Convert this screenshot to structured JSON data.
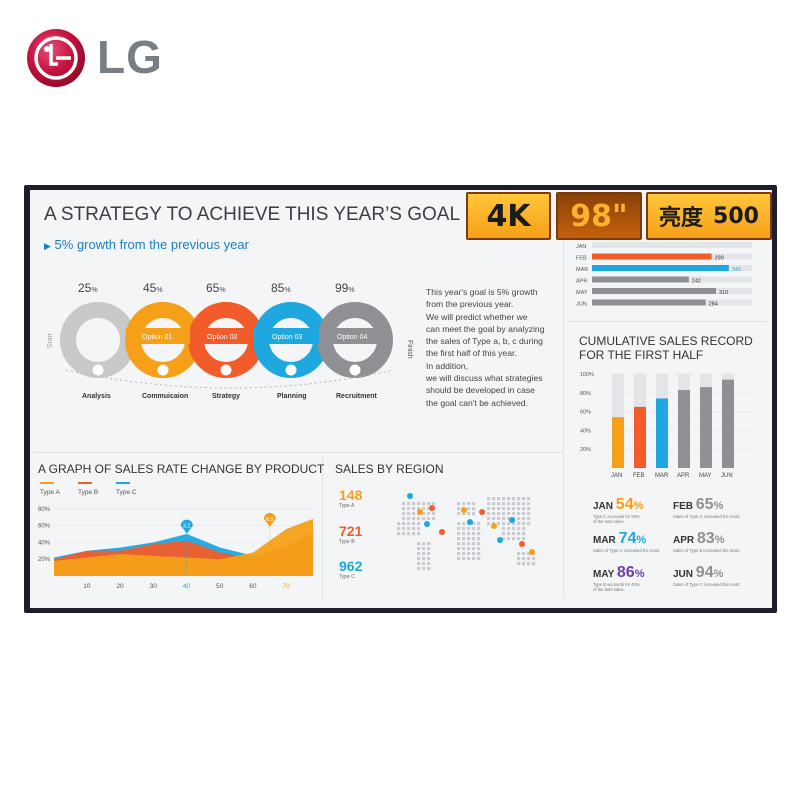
{
  "brand": {
    "logo_text": "LG"
  },
  "badges": {
    "resolution": "4K",
    "size": "98\"",
    "brightness_label": "亮度",
    "brightness_value": "500"
  },
  "colors": {
    "orange": "#f6a019",
    "red": "#f25c2a",
    "blue": "#1ea8df",
    "gray": "#8e9094",
    "red_logo": "#c4123e"
  },
  "strategy": {
    "title": "A STRATEGY TO ACHIEVE THIS YEAR’S GOAL",
    "subtitle": "5% growth from the previous year",
    "start_label": "Start",
    "finish_label": "Finish",
    "steps": [
      {
        "percent": "25",
        "option": "",
        "label": "Analysis",
        "color": "#c9c9c9"
      },
      {
        "percent": "45",
        "option": "Option 01",
        "label": "Commuicaion",
        "color": "#f6a019"
      },
      {
        "percent": "65",
        "option": "Option 02",
        "label": "Strategy",
        "color": "#f25c2a"
      },
      {
        "percent": "85",
        "option": "Option 03",
        "label": "Planning",
        "color": "#1ea8df"
      },
      {
        "percent": "99",
        "option": "Option 04",
        "label": "Recruitment",
        "color": "#8e9094"
      }
    ],
    "percent_sign": "%",
    "paragraph": [
      "This year's goal is 5% growth",
      "from the previous year.",
      "We will predict whether we",
      "can meet the goal by analyzing",
      "the sales of Type a, b, c during",
      "the first half of this year.",
      "In addition,",
      "we will discuss what strategies",
      "should be developed in case",
      "the goal can't be achieved."
    ]
  },
  "monthly_bars": {
    "rows": [
      {
        "month": "JAN",
        "value": ""
      },
      {
        "month": "FEB",
        "value": "299"
      },
      {
        "month": "MAR",
        "value": "342"
      },
      {
        "month": "APR",
        "value": "242"
      },
      {
        "month": "MAY",
        "value": "310"
      },
      {
        "month": "JUN",
        "value": "284"
      }
    ]
  },
  "sales_rate": {
    "title": "A GRAPH OF SALES RATE CHANGE BY PRODUCT",
    "legend": [
      "Type A",
      "Type B",
      "Type C"
    ],
    "y_ticks": [
      "80%",
      "60%",
      "40%",
      "20%"
    ],
    "x_ticks": [
      "10",
      "20",
      "30",
      "40",
      "50",
      "60",
      "70"
    ],
    "markers": [
      {
        "label": "3.2"
      },
      {
        "label": "6.5"
      }
    ]
  },
  "region": {
    "title": "SALES BY REGION",
    "stats": [
      {
        "value": "148",
        "type": "Type A"
      },
      {
        "value": "721",
        "type": "Type B"
      },
      {
        "value": "962",
        "type": "Type C"
      }
    ]
  },
  "cumulative": {
    "title_line1": "CUMULATIVE SALES RECORD",
    "title_line2": "FOR THE FIRST HALF",
    "y_ticks": [
      "100%",
      "80%",
      "60%",
      "40%",
      "20%"
    ],
    "months": [
      "JAN",
      "FEB",
      "MAR",
      "APR",
      "MAY",
      "JUN"
    ],
    "summary": [
      {
        "month": "JAN",
        "pct": "54",
        "note1": "Type C accounts for 50%",
        "note2": "of the total sales."
      },
      {
        "month": "FEB",
        "pct": "65",
        "note1": "Sales of Type C increased the most.",
        "note2": ""
      },
      {
        "month": "MAR",
        "pct": "74",
        "note1": "Sales of Type C increased the most.",
        "note2": ""
      },
      {
        "month": "APR",
        "pct": "83",
        "note1": "Sales of Type B increased the most.",
        "note2": ""
      },
      {
        "month": "MAY",
        "pct": "86",
        "note1": "Type B accounts for 40%",
        "note2": "of the total sales."
      },
      {
        "month": "JUN",
        "pct": "94",
        "note1": "Sales of Type C increased the most.",
        "note2": ""
      }
    ]
  },
  "chart_data": [
    {
      "type": "bar",
      "title": "",
      "categories": [
        "JAN",
        "FEB",
        "MAR",
        "APR",
        "MAY",
        "JUN"
      ],
      "values": [
        null,
        299,
        342,
        242,
        310,
        284
      ],
      "colors": [
        "#f6a019",
        "#f25c2a",
        "#1ea8df",
        "#8e9094",
        "#8e9094",
        "#8e9094"
      ],
      "xlim": [
        0,
        400
      ]
    },
    {
      "type": "area",
      "title": "A GRAPH OF SALES RATE CHANGE BY PRODUCT",
      "x": [
        0,
        10,
        20,
        30,
        40,
        50,
        60,
        70,
        78
      ],
      "series": [
        {
          "name": "Type A",
          "values": [
            18,
            22,
            26,
            24,
            22,
            20,
            28,
            56,
            68
          ]
        },
        {
          "name": "Type B",
          "values": [
            20,
            30,
            30,
            38,
            42,
            28,
            20,
            36,
            52
          ]
        },
        {
          "name": "Type C",
          "values": [
            22,
            30,
            34,
            40,
            50,
            34,
            24,
            34,
            50
          ]
        }
      ],
      "ylim": [
        0,
        100
      ],
      "annotations": [
        {
          "x": 40,
          "label": "3.2"
        },
        {
          "x": 65,
          "label": "6.5"
        }
      ]
    },
    {
      "type": "bar",
      "title": "CUMULATIVE SALES RECORD FOR THE FIRST HALF",
      "categories": [
        "JAN",
        "FEB",
        "MAR",
        "APR",
        "MAY",
        "JUN"
      ],
      "values": [
        54,
        65,
        74,
        83,
        86,
        94
      ],
      "colors": [
        "#f6a019",
        "#f25c2a",
        "#1ea8df",
        "#8e9094",
        "#8e9094",
        "#8e9094"
      ],
      "ylim": [
        0,
        100
      ]
    }
  ]
}
